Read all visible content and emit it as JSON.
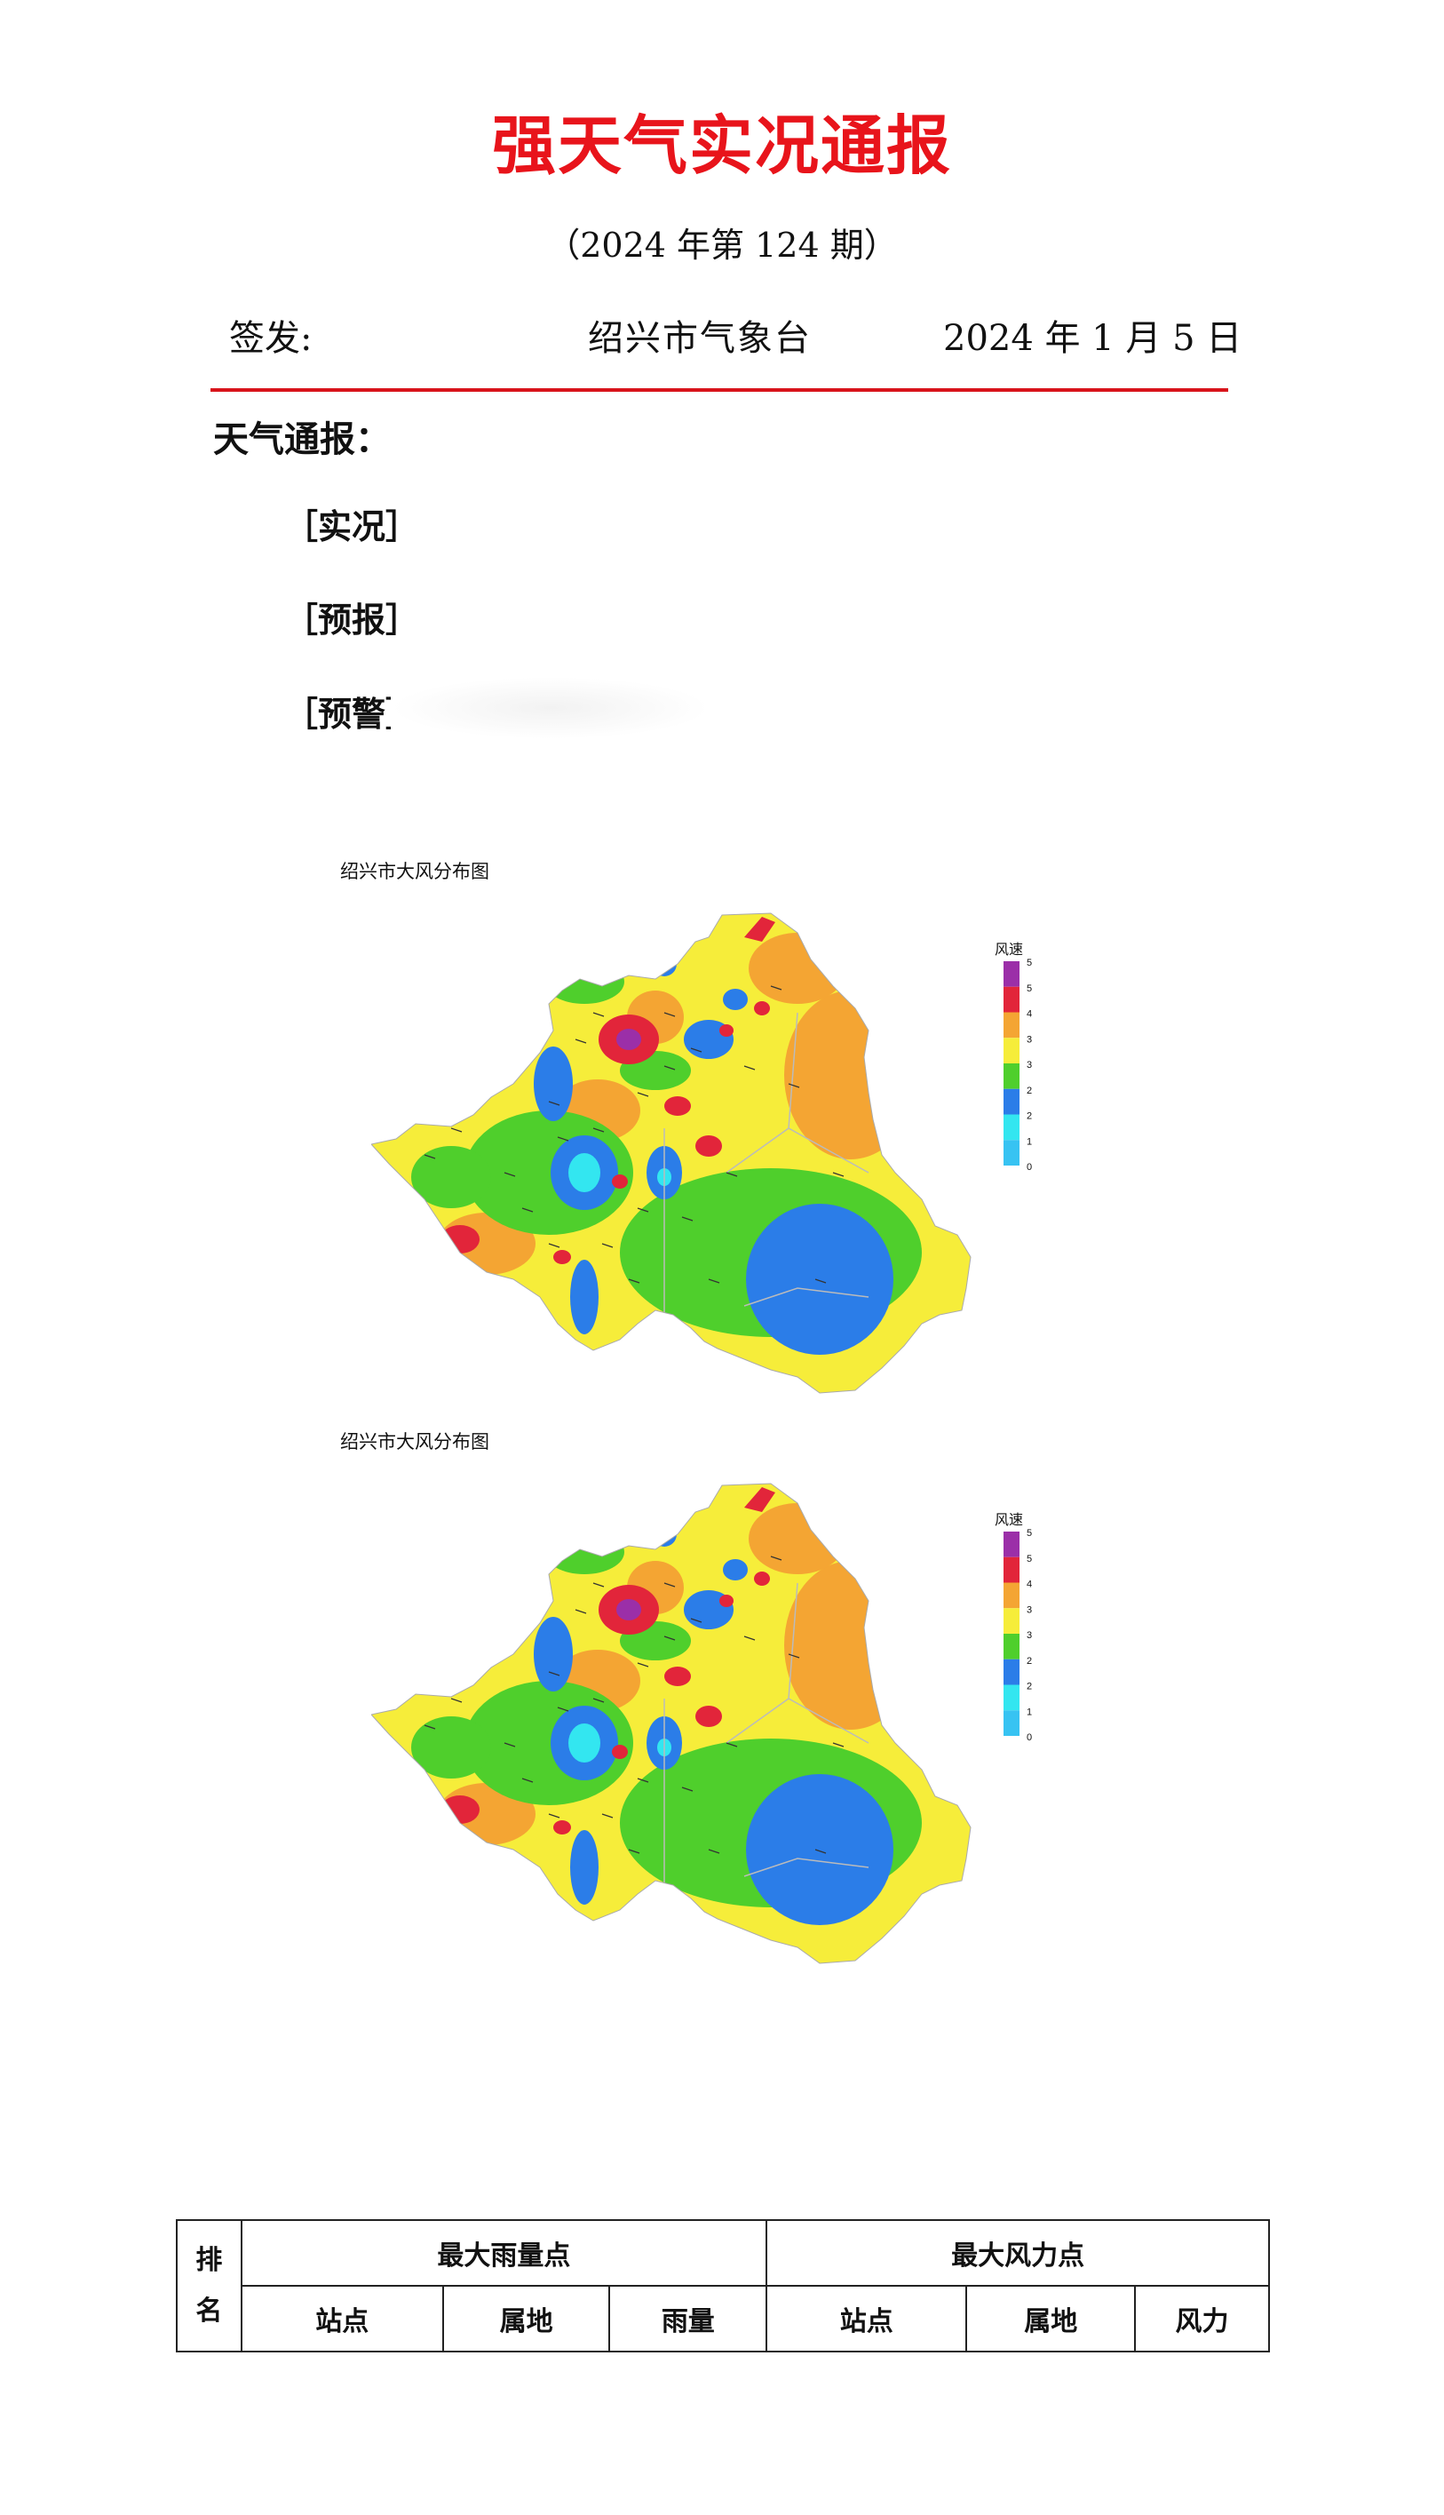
{
  "title": "强天气实况通报",
  "issue": "（2024 年第 124 期）",
  "sign_label": "签发:",
  "agency": "绍兴市气象台",
  "date": "2024 年 1 月 5 日",
  "section": "天气通报：",
  "subsections": [
    "［实况］",
    "［预报］",
    "［预警］"
  ],
  "colors": {
    "title": "#e8141b",
    "rule": "#d8141b"
  },
  "maps": [
    {
      "title": "绍兴市大风分布图",
      "legend_title": "风速",
      "legend_ticks": [
        "5",
        "5",
        "4",
        "3",
        "3",
        "2",
        "2",
        "1",
        "0"
      ]
    },
    {
      "title": "绍兴市大风分布图",
      "legend_title": "风速",
      "legend_ticks": [
        "5",
        "5",
        "4",
        "3",
        "3",
        "2",
        "2",
        "1",
        "0"
      ]
    }
  ],
  "legend_colors": [
    "#9b2fa8",
    "#e2253a",
    "#f4a533",
    "#f6ed3a",
    "#4fcf2c",
    "#2b7de8",
    "#33e6f0",
    "#37c3f2"
  ],
  "table": {
    "rank_header_top": "排",
    "rank_header_bottom": "名",
    "rain_group": "最大雨量点",
    "wind_group": "最大风力点",
    "rain_cols": [
      "站点",
      "属地",
      "雨量"
    ],
    "wind_cols": [
      "站点",
      "属地",
      "风力"
    ]
  }
}
